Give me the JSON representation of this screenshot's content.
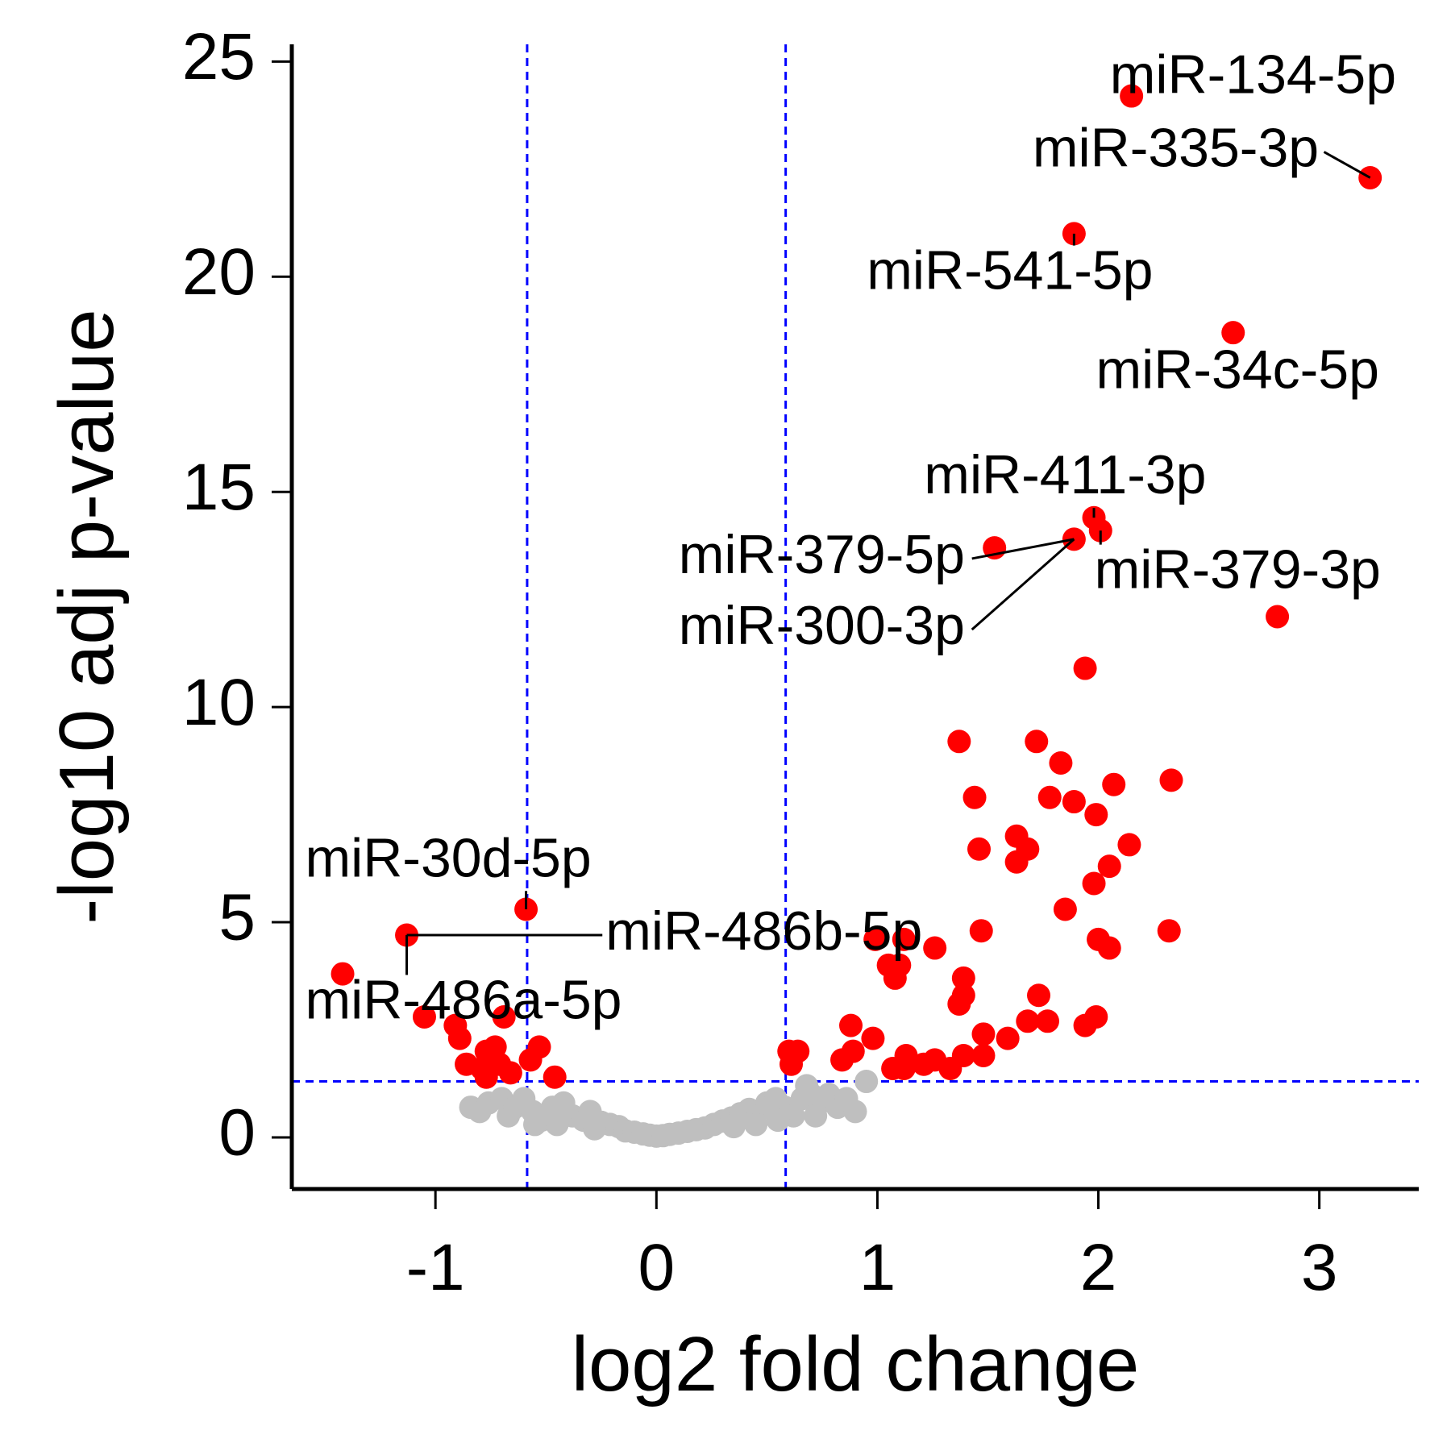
{
  "chart_data": {
    "type": "scatter",
    "title": "",
    "xlabel": "log2 fold change",
    "ylabel": "-log10 adj p-value",
    "xlim": [
      -1.65,
      3.45
    ],
    "ylim": [
      -1.2,
      25.4
    ],
    "xticks": [
      -1,
      0,
      1,
      2,
      3
    ],
    "yticks": [
      0,
      5,
      10,
      15,
      20,
      25
    ],
    "xtick_labels": [
      "-1",
      "0",
      "1",
      "2",
      "3"
    ],
    "ytick_labels": [
      "0",
      "5",
      "10",
      "15",
      "20",
      "25"
    ],
    "grid": false,
    "thresholds": {
      "log2fc": [
        -0.585,
        0.585
      ],
      "neg_log10_padj": 1.3
    },
    "colors": {
      "significant": "#ff0000",
      "not_significant": "#bfbfbf",
      "threshold_line": "#0000ff",
      "axis": "#000000"
    },
    "series": [
      {
        "points": [
          [
            3.23,
            22.3
          ],
          [
            2.15,
            24.2
          ],
          [
            1.89,
            21.0
          ],
          [
            2.61,
            18.7
          ],
          [
            2.81,
            12.1
          ],
          [
            1.98,
            14.4
          ],
          [
            1.89,
            13.9
          ],
          [
            2.01,
            14.1
          ],
          [
            1.53,
            13.7
          ],
          [
            1.94,
            10.9
          ],
          [
            1.37,
            9.2
          ],
          [
            1.72,
            9.2
          ],
          [
            1.83,
            8.7
          ],
          [
            2.33,
            8.3
          ],
          [
            2.07,
            8.2
          ],
          [
            1.44,
            7.9
          ],
          [
            1.78,
            7.9
          ],
          [
            1.89,
            7.8
          ],
          [
            1.99,
            7.5
          ],
          [
            1.63,
            7.0
          ],
          [
            1.68,
            6.7
          ],
          [
            1.46,
            6.7
          ],
          [
            2.14,
            6.8
          ],
          [
            1.63,
            6.4
          ],
          [
            2.05,
            6.3
          ],
          [
            1.98,
            5.9
          ],
          [
            1.85,
            5.3
          ],
          [
            2.32,
            4.8
          ],
          [
            2.0,
            4.6
          ],
          [
            2.05,
            4.4
          ],
          [
            1.47,
            4.8
          ],
          [
            1.12,
            4.6
          ],
          [
            0.99,
            4.6
          ],
          [
            1.26,
            4.4
          ],
          [
            1.05,
            4.0
          ],
          [
            1.1,
            4.0
          ],
          [
            1.08,
            3.7
          ],
          [
            1.39,
            3.7
          ],
          [
            1.39,
            3.3
          ],
          [
            1.37,
            3.1
          ],
          [
            1.73,
            3.3
          ],
          [
            1.68,
            2.7
          ],
          [
            1.77,
            2.7
          ],
          [
            1.99,
            2.8
          ],
          [
            1.94,
            2.6
          ],
          [
            0.88,
            2.6
          ],
          [
            0.98,
            2.3
          ],
          [
            0.89,
            2.0
          ],
          [
            0.84,
            1.8
          ],
          [
            1.48,
            2.4
          ],
          [
            1.59,
            2.3
          ],
          [
            1.48,
            1.9
          ],
          [
            1.39,
            1.9
          ],
          [
            1.13,
            1.9
          ],
          [
            1.07,
            1.6
          ],
          [
            1.12,
            1.6
          ],
          [
            1.26,
            1.8
          ],
          [
            1.21,
            1.7
          ],
          [
            1.33,
            1.6
          ],
          [
            0.6,
            2.0
          ],
          [
            0.61,
            1.7
          ],
          [
            0.64,
            2.0
          ],
          [
            -0.59,
            5.3
          ],
          [
            -1.13,
            4.7
          ],
          [
            -1.42,
            3.8
          ],
          [
            -1.05,
            2.8
          ],
          [
            -0.69,
            2.8
          ],
          [
            -0.91,
            2.6
          ],
          [
            -0.89,
            2.3
          ],
          [
            -0.73,
            2.1
          ],
          [
            -0.77,
            2.0
          ],
          [
            -0.57,
            1.8
          ],
          [
            -0.53,
            2.1
          ],
          [
            -0.46,
            1.4
          ],
          [
            -0.86,
            1.7
          ],
          [
            -0.71,
            1.7
          ],
          [
            -0.77,
            1.4
          ],
          [
            -0.66,
            1.5
          ],
          [
            -0.79,
            1.6
          ]
        ]
      },
      {
        "points": [
          [
            -0.84,
            0.7
          ],
          [
            -0.8,
            0.6
          ],
          [
            -0.76,
            0.8
          ],
          [
            -0.7,
            0.9
          ],
          [
            -0.67,
            0.5
          ],
          [
            -0.64,
            0.7
          ],
          [
            -0.6,
            0.9
          ],
          [
            -0.56,
            0.6
          ],
          [
            -0.52,
            0.4
          ],
          [
            -0.47,
            0.7
          ],
          [
            -0.42,
            0.8
          ],
          [
            -0.38,
            0.5
          ],
          [
            -0.33,
            0.4
          ],
          [
            -0.3,
            0.6
          ],
          [
            -0.25,
            0.35
          ],
          [
            -0.21,
            0.3
          ],
          [
            -0.17,
            0.25
          ],
          [
            -0.14,
            0.15
          ],
          [
            -0.1,
            0.12
          ],
          [
            -0.06,
            0.08
          ],
          [
            -0.03,
            0.05
          ],
          [
            0.0,
            0.03
          ],
          [
            0.03,
            0.04
          ],
          [
            0.06,
            0.07
          ],
          [
            0.1,
            0.1
          ],
          [
            0.14,
            0.14
          ],
          [
            0.18,
            0.18
          ],
          [
            0.22,
            0.22
          ],
          [
            0.26,
            0.3
          ],
          [
            0.3,
            0.38
          ],
          [
            0.34,
            0.45
          ],
          [
            0.38,
            0.55
          ],
          [
            0.42,
            0.65
          ],
          [
            0.46,
            0.6
          ],
          [
            0.5,
            0.8
          ],
          [
            0.54,
            0.9
          ],
          [
            0.58,
            0.7
          ],
          [
            0.62,
            0.5
          ],
          [
            0.66,
            0.9
          ],
          [
            0.7,
            1.0
          ],
          [
            0.68,
            1.2
          ],
          [
            0.74,
            0.8
          ],
          [
            0.78,
            1.0
          ],
          [
            0.82,
            0.7
          ],
          [
            0.86,
            0.9
          ],
          [
            0.9,
            0.6
          ],
          [
            0.95,
            1.3
          ],
          [
            -0.45,
            0.3
          ],
          [
            -0.28,
            0.2
          ],
          [
            0.45,
            0.3
          ],
          [
            0.55,
            0.4
          ],
          [
            0.35,
            0.25
          ],
          [
            -0.55,
            0.3
          ],
          [
            0.72,
            0.5
          ]
        ]
      }
    ],
    "labels": [
      {
        "text": "miR-134-5p",
        "point": [
          2.15,
          24.2
        ],
        "label_at": [
          2.7,
          24.6
        ],
        "anchor": "middle",
        "leader": false
      },
      {
        "text": "miR-335-3p",
        "point": [
          3.23,
          22.3
        ],
        "label_at": [
          2.35,
          22.9
        ],
        "anchor": "middle",
        "leader": true
      },
      {
        "text": "miR-541-5p",
        "point": [
          1.89,
          21.0
        ],
        "label_at": [
          1.6,
          20.05
        ],
        "anchor": "middle",
        "leader": true
      },
      {
        "text": "miR-34c-5p",
        "point": [
          2.61,
          18.7
        ],
        "label_at": [
          2.63,
          17.75
        ],
        "anchor": "middle",
        "leader": false
      },
      {
        "text": "miR-411-3p",
        "point": [
          1.98,
          14.4
        ],
        "label_at": [
          1.85,
          15.3
        ],
        "anchor": "middle",
        "leader": true
      },
      {
        "text": "miR-379-5p",
        "point": [
          1.89,
          13.9
        ],
        "label_at": [
          0.1,
          13.45
        ],
        "anchor": "start",
        "leader": true
      },
      {
        "text": "miR-379-3p",
        "point": [
          2.01,
          14.1
        ],
        "label_at": [
          2.63,
          13.1
        ],
        "anchor": "middle",
        "leader": true
      },
      {
        "text": "miR-300-3p",
        "point": [
          1.89,
          13.9
        ],
        "label_at": [
          0.1,
          11.8
        ],
        "anchor": "start",
        "leader": true
      },
      {
        "text": "miR-30d-5p",
        "point": [
          -0.59,
          5.3
        ],
        "label_at": [
          -1.59,
          6.4
        ],
        "anchor": "start",
        "leader": true
      },
      {
        "text": "miR-486b-5p",
        "point": [
          -1.13,
          4.7
        ],
        "label_at": [
          -0.23,
          4.7
        ],
        "anchor": "start",
        "leader": true
      },
      {
        "text": "miR-486a-5p",
        "point": [
          -1.13,
          4.7
        ],
        "label_at": [
          -1.59,
          3.1
        ],
        "anchor": "start",
        "leader": true
      }
    ]
  }
}
